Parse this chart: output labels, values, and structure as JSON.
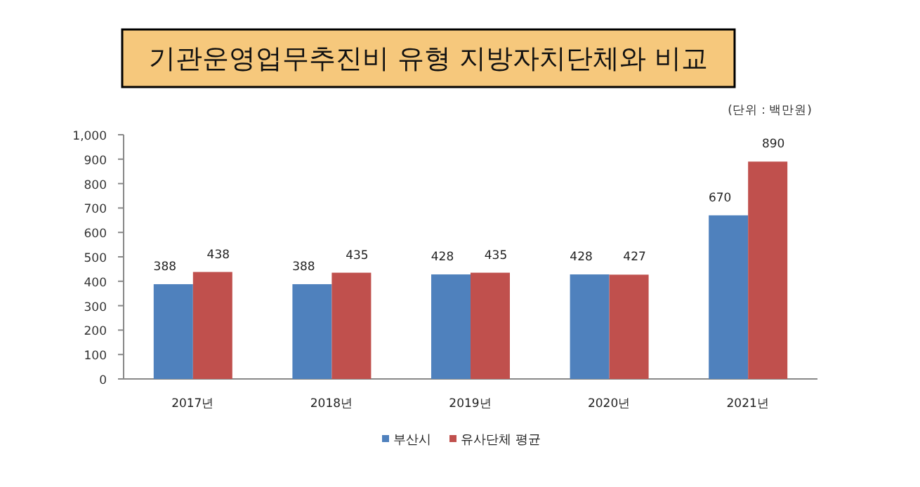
{
  "chart_data": {
    "type": "bar",
    "title": "기관운영업무추진비 유형 지방자치단체와 비교",
    "annotations": [
      "(단위 : 백만원)"
    ],
    "categories": [
      "2017년",
      "2018년",
      "2019년",
      "2020년",
      "2021년"
    ],
    "series": [
      {
        "name": "부산시",
        "color": "#4f81bd",
        "values": [
          388,
          388,
          428,
          428,
          670
        ]
      },
      {
        "name": "유사단체 평균",
        "color": "#c0504d",
        "values": [
          438,
          435,
          435,
          427,
          890
        ]
      }
    ],
    "ylim": [
      0,
      1000
    ],
    "yticks": [
      0,
      100,
      200,
      300,
      400,
      500,
      600,
      700,
      800,
      900,
      {
        "value": 1000,
        "label": "1,000"
      }
    ],
    "data_labels": true,
    "grid": false,
    "legend": "bottom"
  }
}
